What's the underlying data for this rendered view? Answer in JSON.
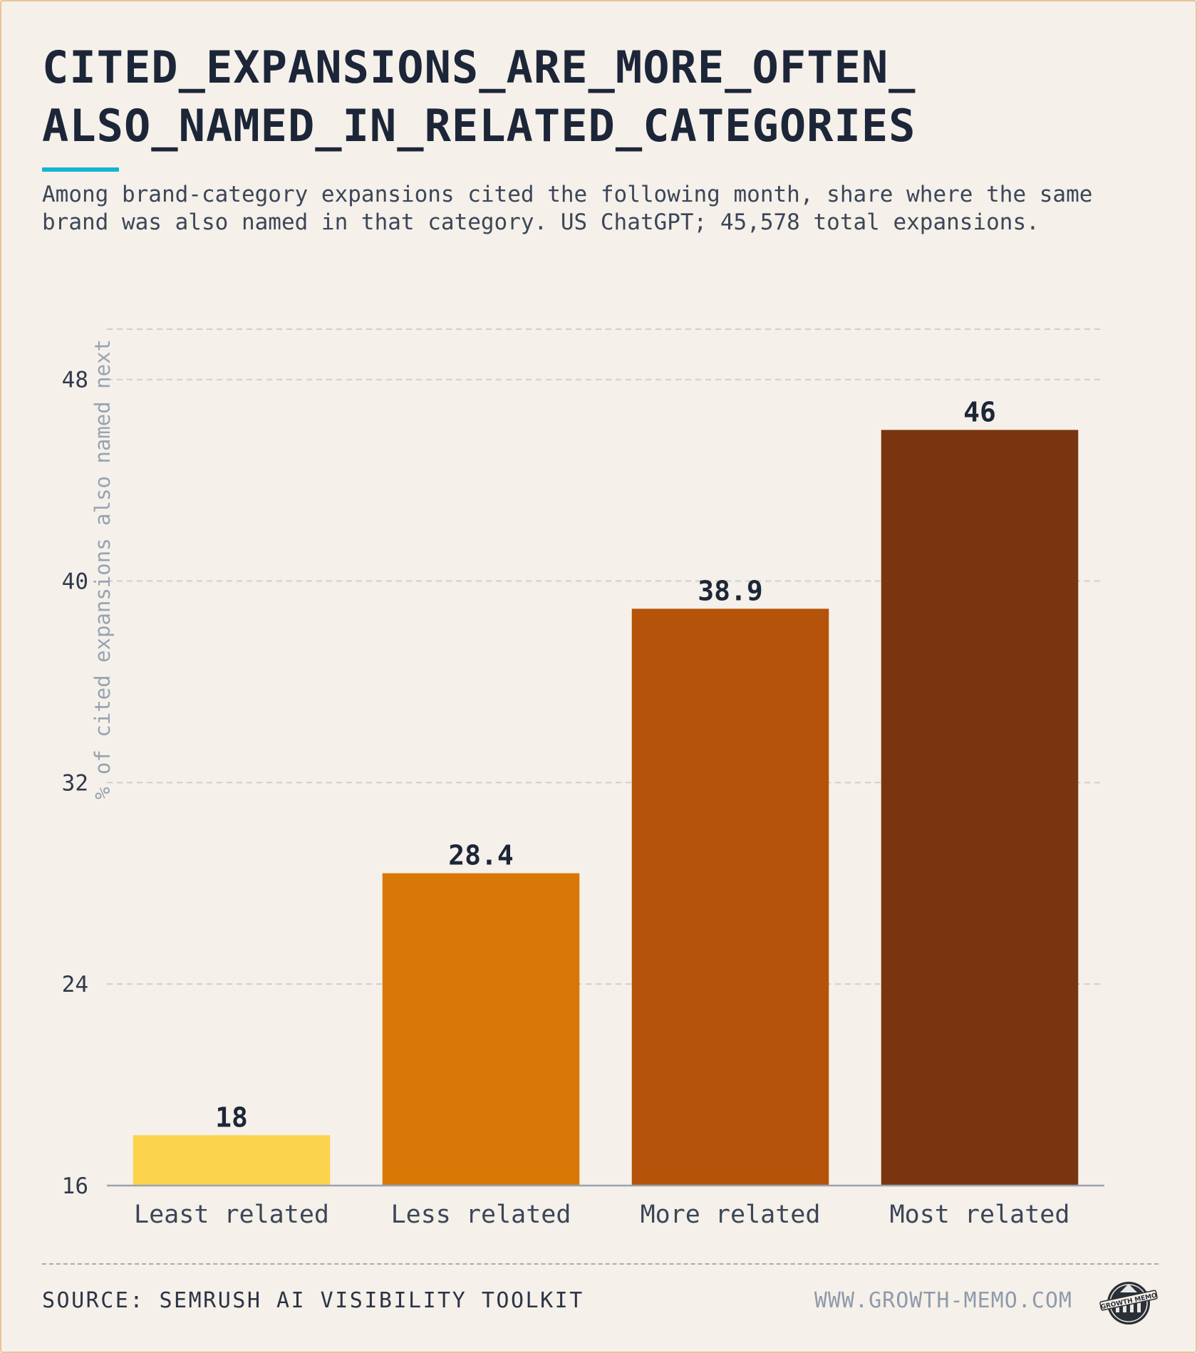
{
  "title": "CITED_EXPANSIONS_ARE_MORE_OFTEN_ ALSO_NAMED_IN_RELATED_CATEGORIES",
  "subtitle": "Among brand-category expansions cited the following month, share where the same brand was also named in that category. US ChatGPT; 45,578 total expansions.",
  "footer": {
    "source": "SOURCE: SEMRUSH AI VISIBILITY TOOLKIT",
    "site": "WWW.GROWTH-MEMO.COM",
    "logo_text": "GROWTH MEMO"
  },
  "colors": {
    "background": "#f5f0e9",
    "accent": "#13b5d2",
    "bars": [
      "#fcd34d",
      "#d97706",
      "#b45309",
      "#78350f"
    ]
  },
  "chart_data": {
    "type": "bar",
    "categories": [
      "Least related",
      "Less related",
      "More related",
      "Most related"
    ],
    "values": [
      18,
      28.4,
      38.9,
      46
    ],
    "value_labels": [
      "18",
      "28.4",
      "38.9",
      "46"
    ],
    "ylabel": "% of cited expansions also named next",
    "xlabel": "",
    "ylim": [
      16,
      50
    ],
    "yticks": [
      16,
      24,
      32,
      40,
      48
    ],
    "grid": true
  }
}
